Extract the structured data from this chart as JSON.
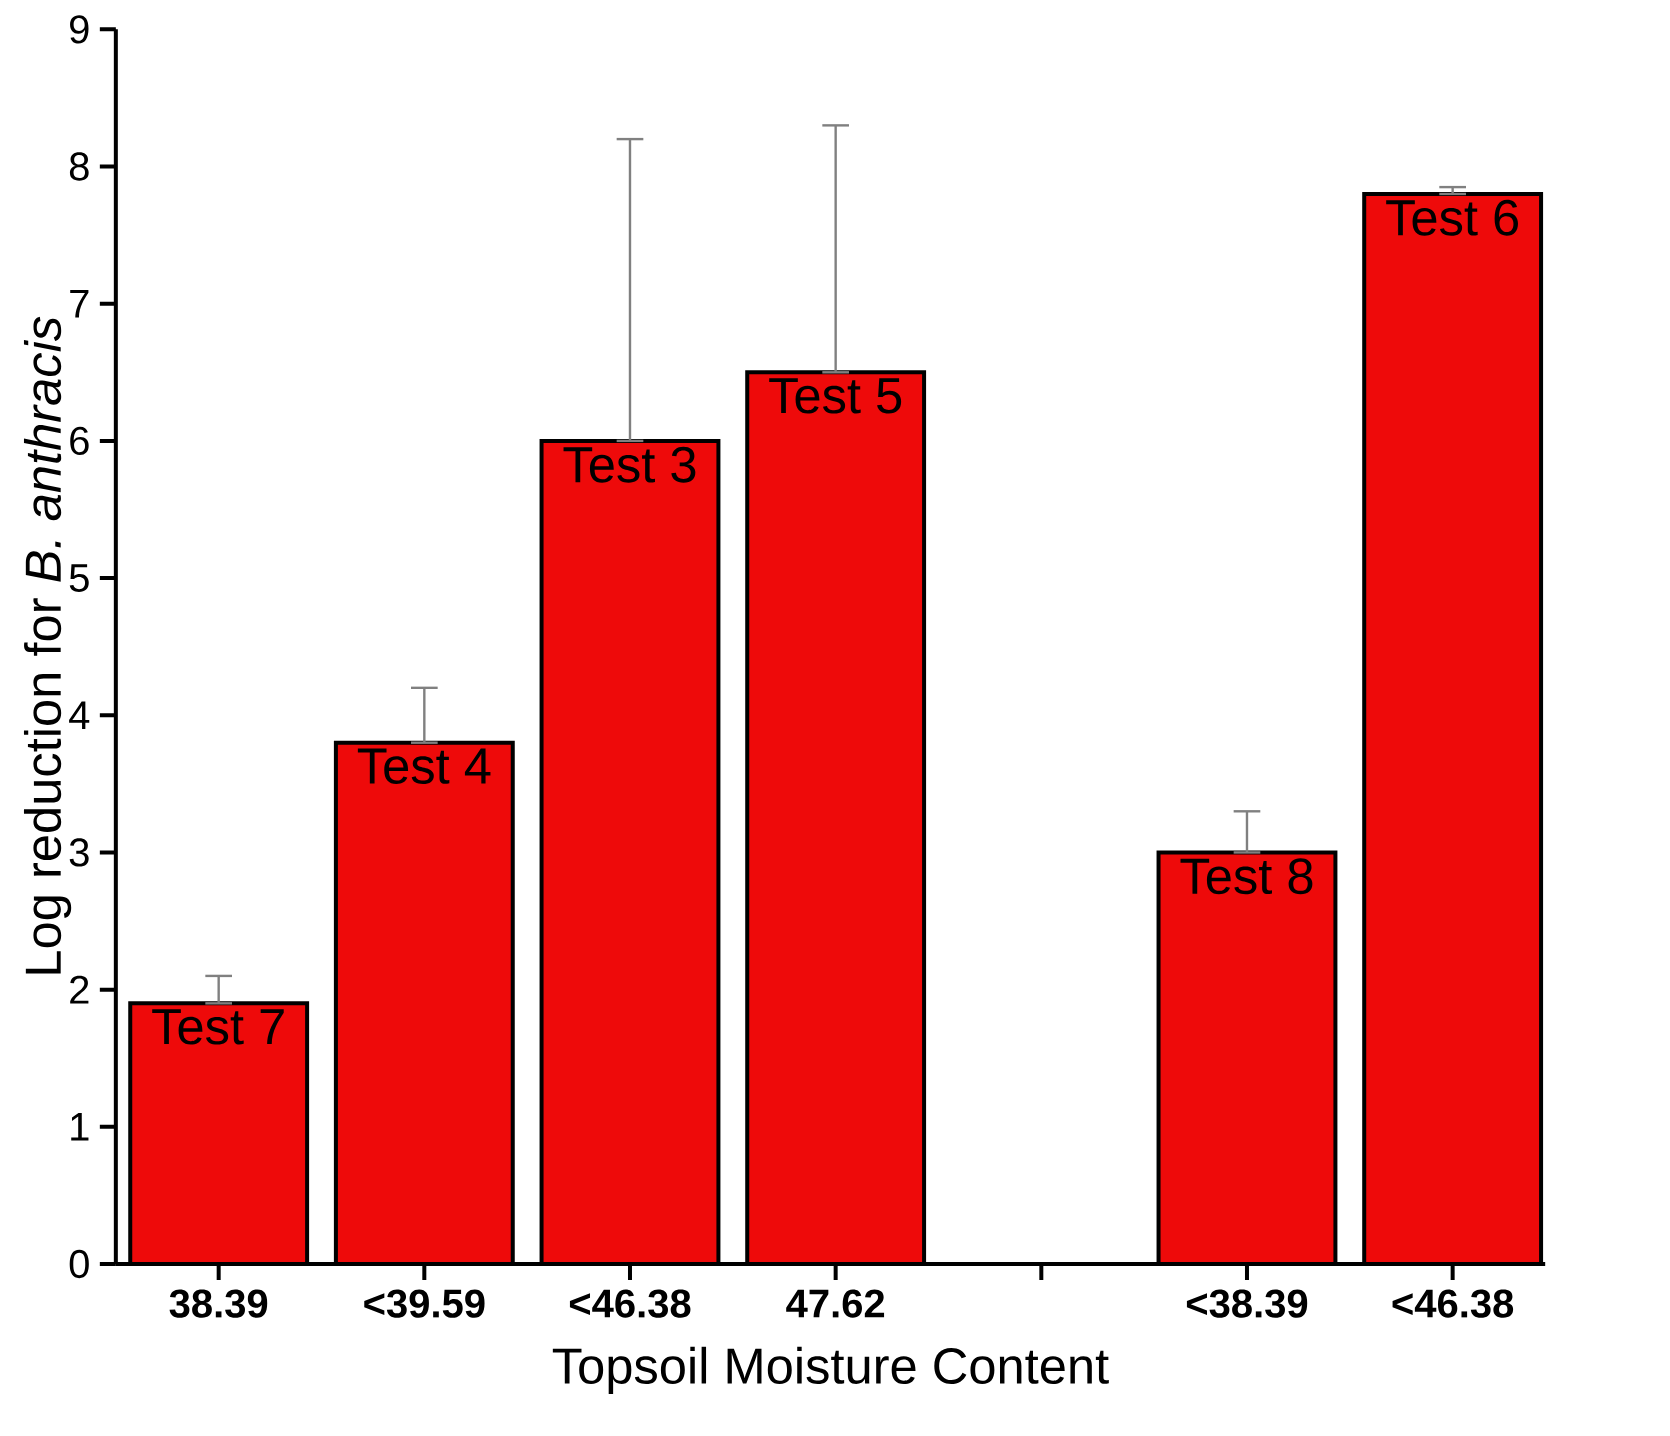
{
  "chart_data": {
    "type": "bar",
    "xlabel": "Topsoil Moisture Content",
    "ylabel": "Log reduction for *B. anthracis*",
    "categories": [
      "38.39",
      "<39.59",
      "<46.38",
      "47.62",
      null,
      "<38.39",
      "<46.38"
    ],
    "values": [
      1.9,
      3.8,
      6.0,
      6.5,
      null,
      3.0,
      7.8
    ],
    "errors": [
      [
        1.9,
        2.1
      ],
      [
        3.8,
        4.2
      ],
      [
        6.0,
        8.2
      ],
      [
        6.5,
        8.3
      ],
      null,
      [
        3.0,
        3.3
      ],
      [
        7.8,
        7.85
      ]
    ],
    "color": "#ee0a0a",
    "ylim": [
      0,
      9
    ],
    "yticks": [
      0,
      1,
      2,
      3,
      4,
      5,
      6,
      7,
      8,
      9
    ],
    "value_labels": [
      "Test 7",
      "Test 4",
      "Test 3",
      "Test 5",
      null,
      "Test 8",
      "Test 6"
    ]
  }
}
